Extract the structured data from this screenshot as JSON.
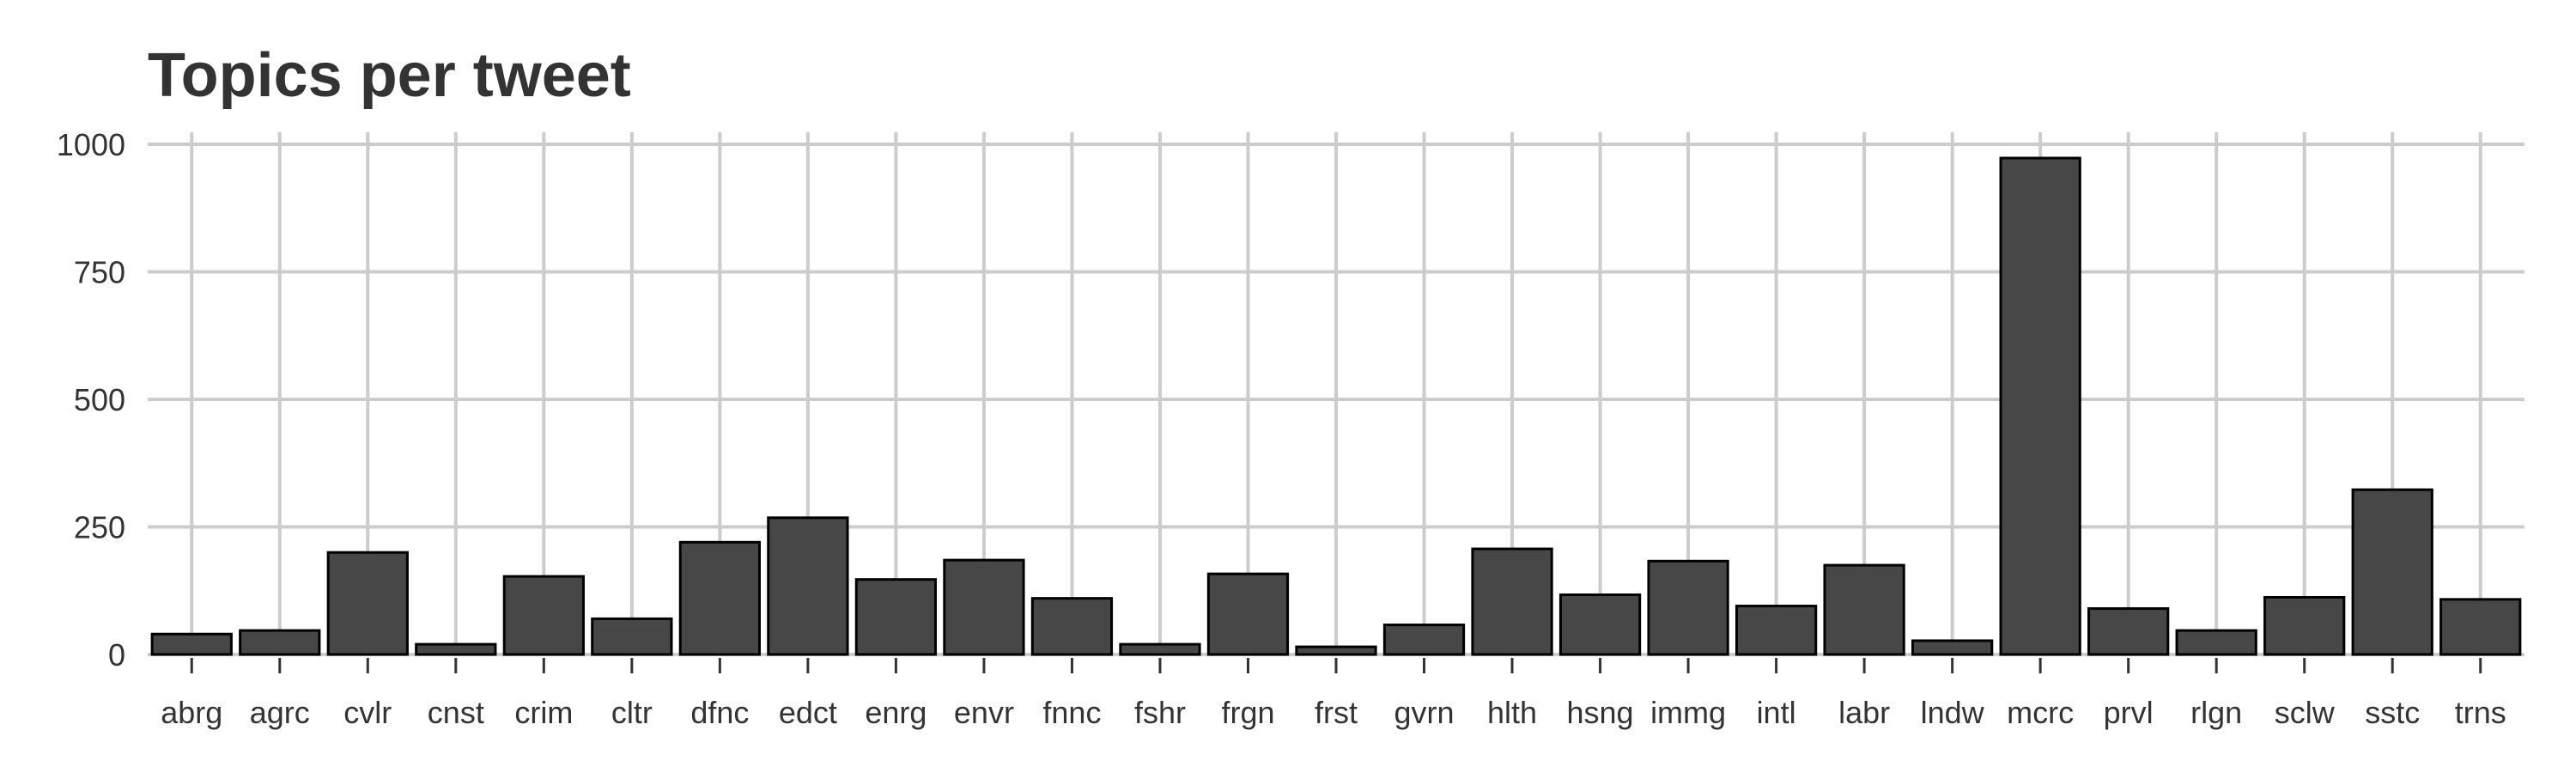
{
  "chart_data": {
    "type": "bar",
    "title": "Topics per tweet",
    "xlabel": "",
    "ylabel": "",
    "categories": [
      "abrg",
      "agrc",
      "cvlr",
      "cnst",
      "crim",
      "cltr",
      "dfnc",
      "edct",
      "enrg",
      "envr",
      "fnnc",
      "fshr",
      "frgn",
      "frst",
      "gvrn",
      "hlth",
      "hsng",
      "immg",
      "intl",
      "labr",
      "lndw",
      "mcrc",
      "prvl",
      "rlgn",
      "sclw",
      "sstc",
      "trns"
    ],
    "values": [
      40,
      47,
      200,
      20,
      153,
      70,
      220,
      268,
      147,
      185,
      110,
      20,
      158,
      15,
      58,
      207,
      117,
      183,
      95,
      175,
      27,
      973,
      90,
      47,
      112,
      323,
      108
    ],
    "ylim": [
      0,
      1000
    ],
    "yticks": [
      0,
      250,
      500,
      750,
      1000
    ],
    "ytick_labels": [
      "0",
      "250",
      "500",
      "750",
      "1000"
    ],
    "grid": true,
    "colors": {
      "bar_fill": "#474747",
      "bar_edge": "#000000",
      "grid": "#cccccc",
      "text": "#333333"
    }
  }
}
